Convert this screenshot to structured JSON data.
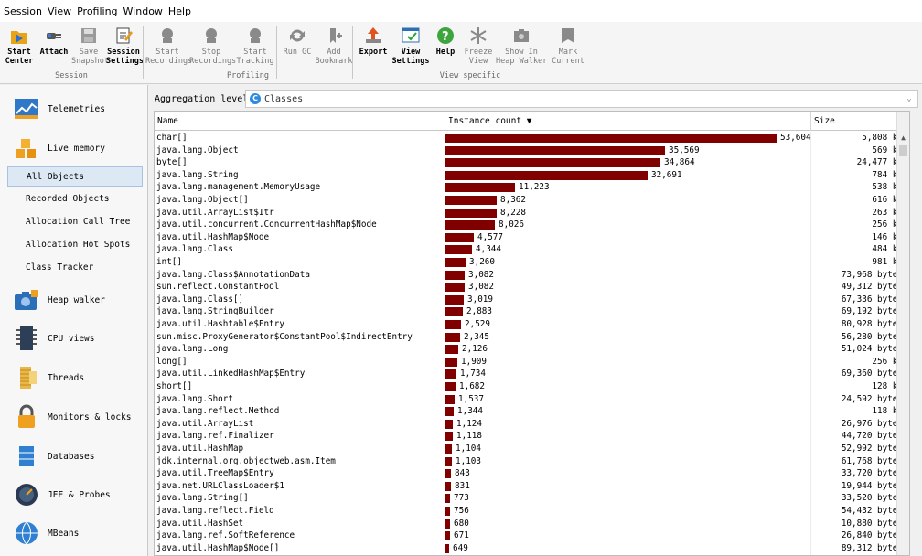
{
  "menu": [
    "Session",
    "View",
    "Profiling",
    "Window",
    "Help"
  ],
  "toolbar": {
    "groups": [
      {
        "caption": "Session",
        "buttons": [
          {
            "label": "Start\nCenter",
            "icon": "start-center-icon",
            "bold": true
          },
          {
            "label": "Attach",
            "icon": "attach-icon",
            "bold": true
          },
          {
            "label": "Save\nSnapshot",
            "icon": "save-icon",
            "bold": false,
            "disabled": true
          },
          {
            "label": "Session\nSettings",
            "icon": "session-settings-icon",
            "bold": true
          }
        ]
      },
      {
        "caption": "Profiling",
        "buttons": [
          {
            "label": "Start\nRecordings",
            "icon": "start-recordings-icon",
            "disabled": true
          },
          {
            "label": "Stop\nRecordings",
            "icon": "stop-recordings-icon",
            "disabled": true
          },
          {
            "label": "Start\nTracking",
            "icon": "start-tracking-icon",
            "disabled": true
          },
          {
            "label": "Run GC",
            "icon": "run-gc-icon",
            "disabled": true
          },
          {
            "label": "Add\nBookmark",
            "icon": "add-bookmark-icon",
            "disabled": true
          }
        ]
      },
      {
        "caption": "View specific",
        "buttons": [
          {
            "label": "Export",
            "icon": "export-icon",
            "bold": true
          },
          {
            "label": "View\nSettings",
            "icon": "view-settings-icon",
            "bold": true
          },
          {
            "label": "Help",
            "icon": "help-icon",
            "bold": true
          },
          {
            "label": "Freeze\nView",
            "icon": "freeze-view-icon",
            "disabled": true
          },
          {
            "label": "Show In\nHeap Walker",
            "icon": "show-in-heap-walker-icon",
            "disabled": true
          },
          {
            "label": "Mark\nCurrent",
            "icon": "mark-current-icon",
            "disabled": true
          }
        ]
      }
    ]
  },
  "sidebar": {
    "sections": [
      {
        "label": "Telemetries",
        "icon": "telemetries-icon"
      },
      {
        "label": "Live memory",
        "icon": "live-memory-icon",
        "subitems": [
          "All Objects",
          "Recorded Objects",
          "Allocation Call Tree",
          "Allocation Hot Spots",
          "Class Tracker"
        ],
        "selected": "All Objects"
      },
      {
        "label": "Heap walker",
        "icon": "heap-walker-icon"
      },
      {
        "label": "CPU views",
        "icon": "cpu-views-icon"
      },
      {
        "label": "Threads",
        "icon": "threads-icon"
      },
      {
        "label": "Monitors & locks",
        "icon": "monitors-locks-icon"
      },
      {
        "label": "Databases",
        "icon": "databases-icon"
      },
      {
        "label": "JEE & Probes",
        "icon": "jee-probes-icon"
      },
      {
        "label": "MBeans",
        "icon": "mbeans-icon"
      }
    ]
  },
  "aggregation": {
    "label": "Aggregation level:",
    "value": "Classes"
  },
  "table": {
    "columns": [
      "Name",
      "Instance count ▼",
      "Size"
    ],
    "max_count": 53604,
    "rows": [
      {
        "name": "char[]",
        "count": 53604,
        "count_label": "53,604",
        "size": "5,808 kB"
      },
      {
        "name": "java.lang.Object",
        "count": 35569,
        "count_label": "35,569",
        "size": "569 kB"
      },
      {
        "name": "byte[]",
        "count": 34864,
        "count_label": "34,864",
        "size": "24,477 kB"
      },
      {
        "name": "java.lang.String",
        "count": 32691,
        "count_label": "32,691",
        "size": "784 kB"
      },
      {
        "name": "java.lang.management.MemoryUsage",
        "count": 11223,
        "count_label": "11,223",
        "size": "538 kB"
      },
      {
        "name": "java.lang.Object[]",
        "count": 8362,
        "count_label": "8,362",
        "size": "616 kB"
      },
      {
        "name": "java.util.ArrayList$Itr",
        "count": 8228,
        "count_label": "8,228",
        "size": "263 kB"
      },
      {
        "name": "java.util.concurrent.ConcurrentHashMap$Node",
        "count": 8026,
        "count_label": "8,026",
        "size": "256 kB"
      },
      {
        "name": "java.util.HashMap$Node",
        "count": 4577,
        "count_label": "4,577",
        "size": "146 kB"
      },
      {
        "name": "java.lang.Class",
        "count": 4344,
        "count_label": "4,344",
        "size": "484 kB"
      },
      {
        "name": "int[]",
        "count": 3260,
        "count_label": "3,260",
        "size": "981 kB"
      },
      {
        "name": "java.lang.Class$AnnotationData",
        "count": 3082,
        "count_label": "3,082",
        "size": "73,968 bytes"
      },
      {
        "name": "sun.reflect.ConstantPool",
        "count": 3082,
        "count_label": "3,082",
        "size": "49,312 bytes"
      },
      {
        "name": "java.lang.Class[]",
        "count": 3019,
        "count_label": "3,019",
        "size": "67,336 bytes"
      },
      {
        "name": "java.lang.StringBuilder",
        "count": 2883,
        "count_label": "2,883",
        "size": "69,192 bytes"
      },
      {
        "name": "java.util.Hashtable$Entry",
        "count": 2529,
        "count_label": "2,529",
        "size": "80,928 bytes"
      },
      {
        "name": "sun.misc.ProxyGenerator$ConstantPool$IndirectEntry",
        "count": 2345,
        "count_label": "2,345",
        "size": "56,280 bytes"
      },
      {
        "name": "java.lang.Long",
        "count": 2126,
        "count_label": "2,126",
        "size": "51,024 bytes"
      },
      {
        "name": "long[]",
        "count": 1909,
        "count_label": "1,909",
        "size": "256 kB"
      },
      {
        "name": "java.util.LinkedHashMap$Entry",
        "count": 1734,
        "count_label": "1,734",
        "size": "69,360 bytes"
      },
      {
        "name": "short[]",
        "count": 1682,
        "count_label": "1,682",
        "size": "128 kB"
      },
      {
        "name": "java.lang.Short",
        "count": 1537,
        "count_label": "1,537",
        "size": "24,592 bytes"
      },
      {
        "name": "java.lang.reflect.Method",
        "count": 1344,
        "count_label": "1,344",
        "size": "118 kB"
      },
      {
        "name": "java.util.ArrayList",
        "count": 1124,
        "count_label": "1,124",
        "size": "26,976 bytes"
      },
      {
        "name": "java.lang.ref.Finalizer",
        "count": 1118,
        "count_label": "1,118",
        "size": "44,720 bytes"
      },
      {
        "name": "java.util.HashMap",
        "count": 1104,
        "count_label": "1,104",
        "size": "52,992 bytes"
      },
      {
        "name": "jdk.internal.org.objectweb.asm.Item",
        "count": 1103,
        "count_label": "1,103",
        "size": "61,768 bytes"
      },
      {
        "name": "java.util.TreeMap$Entry",
        "count": 843,
        "count_label": "843",
        "size": "33,720 bytes"
      },
      {
        "name": "java.net.URLClassLoader$1",
        "count": 831,
        "count_label": "831",
        "size": "19,944 bytes"
      },
      {
        "name": "java.lang.String[]",
        "count": 773,
        "count_label": "773",
        "size": "33,520 bytes"
      },
      {
        "name": "java.lang.reflect.Field",
        "count": 756,
        "count_label": "756",
        "size": "54,432 bytes"
      },
      {
        "name": "java.util.HashSet",
        "count": 680,
        "count_label": "680",
        "size": "10,880 bytes"
      },
      {
        "name": "java.lang.ref.SoftReference",
        "count": 671,
        "count_label": "671",
        "size": "26,840 bytes"
      },
      {
        "name": "java.util.HashMap$Node[]",
        "count": 649,
        "count_label": "649",
        "size": "89,312 bytes"
      }
    ]
  },
  "colors": {
    "bar": "#800000",
    "selection": "#dde8f5",
    "aggregation_icon": "#2c8be0"
  }
}
